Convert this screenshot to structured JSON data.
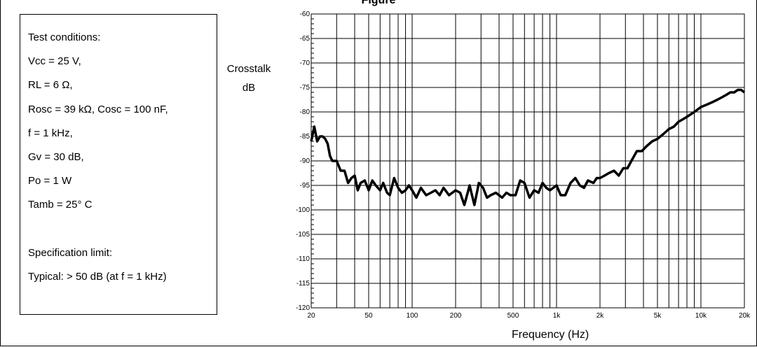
{
  "title": "Figure",
  "conditions": {
    "heading": "Test conditions:",
    "lines": [
      "Vcc = 25 V,",
      "RL = 6 Ω,",
      "Rosc = 39 kΩ, Cosc = 100 nF,",
      "f = 1 kHz,",
      "Gv = 30 dB,",
      "Po = 1 W",
      "Tamb = 25° C"
    ],
    "spec_heading": "Specification limit:",
    "spec_value": "Typical: > 50 dB (at f = 1 kHz)"
  },
  "chart_data": {
    "type": "line",
    "xscale": "log",
    "xlim": [
      20,
      20000
    ],
    "ylim": [
      -120,
      -60
    ],
    "ylabel_line1": "Crosstalk",
    "ylabel_line2": "dB",
    "xlabel": "Frequency (Hz)",
    "grid": true,
    "xticks": [
      20,
      50,
      100,
      200,
      500,
      1000,
      2000,
      5000,
      10000,
      20000
    ],
    "xtick_labels": [
      "20",
      "50",
      "100",
      "200",
      "500",
      "1k",
      "2k",
      "5k",
      "10k",
      "20k"
    ],
    "yticks": [
      -60,
      -65,
      -70,
      -75,
      -80,
      -85,
      -90,
      -95,
      -100,
      -105,
      -110,
      -115,
      -120
    ],
    "ytick_labels": [
      "-60",
      "-65",
      "-70",
      "-75",
      "-80",
      "-85",
      "-90",
      "-95",
      "-100",
      "-105",
      "-110",
      "-115",
      "-120"
    ],
    "series": [
      {
        "color": "#000000",
        "x": [
          20,
          21,
          22,
          23,
          24,
          25,
          26,
          27,
          28,
          30,
          32,
          34,
          36,
          38,
          40,
          42,
          44,
          47,
          50,
          53,
          56,
          60,
          63,
          67,
          70,
          75,
          80,
          85,
          90,
          95,
          100,
          107,
          115,
          125,
          135,
          145,
          155,
          165,
          180,
          200,
          215,
          230,
          250,
          270,
          290,
          310,
          330,
          350,
          380,
          420,
          450,
          480,
          520,
          560,
          600,
          650,
          700,
          750,
          800,
          850,
          900,
          950,
          1000,
          1070,
          1150,
          1250,
          1350,
          1450,
          1550,
          1650,
          1800,
          1900,
          2000,
          2150,
          2300,
          2500,
          2700,
          2900,
          3100,
          3300,
          3600,
          3900,
          4200,
          4600,
          5000,
          5500,
          6000,
          6500,
          7000,
          7500,
          8000,
          9000,
          10000,
          11000,
          12000,
          13000,
          14000,
          15000,
          16000,
          17000,
          18000,
          19000,
          20000
        ],
        "y": [
          -86,
          -83,
          -86,
          -85,
          -85,
          -85.5,
          -86.5,
          -89,
          -90,
          -90,
          -92,
          -92,
          -94.5,
          -93.5,
          -93,
          -96,
          -94.5,
          -94,
          -96,
          -94,
          -95,
          -96,
          -94.5,
          -96.5,
          -97,
          -93.5,
          -95.5,
          -96.5,
          -96,
          -95,
          -96,
          -97.5,
          -95.5,
          -97,
          -96.5,
          -96,
          -97,
          -95.5,
          -97,
          -96,
          -96.5,
          -99,
          -95,
          -99,
          -94.5,
          -95.5,
          -97.5,
          -97,
          -96.5,
          -97.5,
          -96.5,
          -97,
          -97,
          -94,
          -94.5,
          -97.5,
          -96,
          -96.5,
          -94.5,
          -95.5,
          -96,
          -95.5,
          -95,
          -97,
          -97,
          -94.5,
          -93.5,
          -95,
          -95.5,
          -94,
          -94.5,
          -93.5,
          -93.5,
          -93,
          -92.5,
          -92,
          -93,
          -91.5,
          -91.5,
          -90,
          -88,
          -88,
          -87,
          -86,
          -85.5,
          -84.5,
          -83.5,
          -83,
          -82,
          -81.5,
          -81,
          -80,
          -79,
          -78.5,
          -78,
          -77.5,
          -77,
          -76.5,
          -76,
          -76,
          -75.5,
          -75.5,
          -76
        ]
      }
    ]
  }
}
